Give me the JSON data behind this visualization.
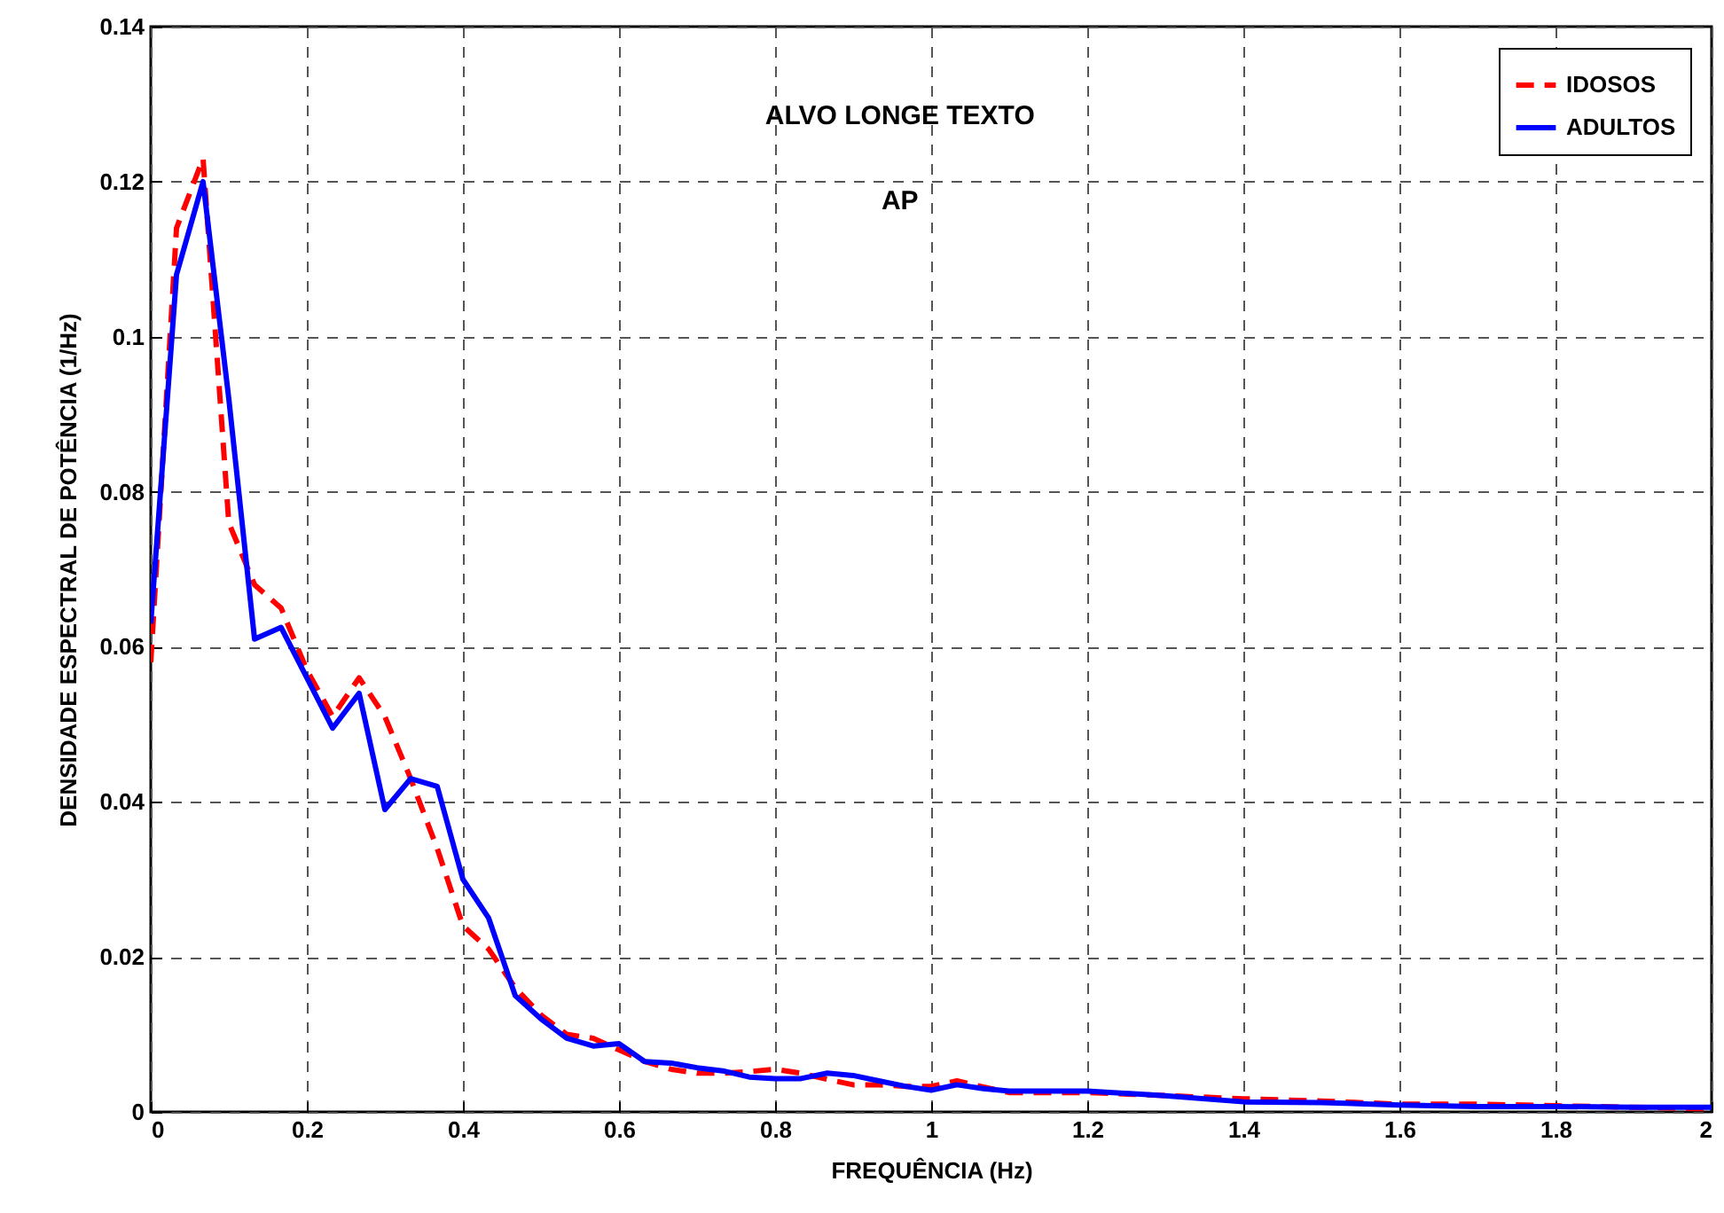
{
  "chart_data": {
    "type": "line",
    "xlabel": "FREQUÊNCIA (Hz)",
    "ylabel": "DENSIDADE ESPECTRAL DE POTÊNCIA (1/Hz)",
    "annotations": [
      "ALVO LONGE TEXTO",
      "AP"
    ],
    "x": [
      0,
      0.033,
      0.067,
      0.1,
      0.133,
      0.167,
      0.2,
      0.233,
      0.267,
      0.3,
      0.333,
      0.367,
      0.4,
      0.433,
      0.467,
      0.5,
      0.533,
      0.567,
      0.6,
      0.633,
      0.667,
      0.7,
      0.733,
      0.767,
      0.8,
      0.833,
      0.867,
      0.9,
      0.933,
      0.967,
      1.0,
      1.033,
      1.067,
      1.1,
      1.2,
      1.3,
      1.4,
      1.5,
      1.6,
      1.7,
      1.8,
      1.9,
      2.0
    ],
    "series": [
      {
        "name": "IDOSOS",
        "color": "#ff0000",
        "line_style": "dashed",
        "values": [
          0.058,
          0.114,
          0.123,
          0.076,
          0.068,
          0.065,
          0.057,
          0.051,
          0.056,
          0.051,
          0.043,
          0.034,
          0.024,
          0.021,
          0.016,
          0.0125,
          0.01,
          0.0095,
          0.008,
          0.0065,
          0.0055,
          0.005,
          0.005,
          0.0052,
          0.0055,
          0.005,
          0.0042,
          0.0035,
          0.0035,
          0.0033,
          0.0033,
          0.004,
          0.0032,
          0.0025,
          0.0025,
          0.0021,
          0.0017,
          0.0014,
          0.001,
          0.001,
          0.0008,
          0.0006,
          0.0004
        ]
      },
      {
        "name": "ADULTOS",
        "color": "#0000ff",
        "line_style": "solid",
        "values": [
          0.063,
          0.108,
          0.12,
          0.092,
          0.061,
          0.0625,
          0.056,
          0.0495,
          0.054,
          0.039,
          0.043,
          0.042,
          0.03,
          0.025,
          0.015,
          0.012,
          0.0095,
          0.0085,
          0.0088,
          0.0065,
          0.0063,
          0.0057,
          0.0053,
          0.0045,
          0.0043,
          0.0043,
          0.005,
          0.0047,
          0.004,
          0.0033,
          0.0028,
          0.0035,
          0.003,
          0.0027,
          0.0027,
          0.0021,
          0.0013,
          0.0012,
          0.0009,
          0.0007,
          0.0007,
          0.0006,
          0.0006
        ]
      }
    ],
    "xlim": [
      0,
      2
    ],
    "xticks": [
      0,
      0.2,
      0.4,
      0.6,
      0.8,
      1,
      1.2,
      1.4,
      1.6,
      1.8,
      2
    ],
    "ylim": [
      0,
      0.14
    ],
    "yticks": [
      0,
      0.02,
      0.04,
      0.06,
      0.08,
      0.1,
      0.12,
      0.14
    ],
    "grid": true,
    "legend": "top right"
  }
}
